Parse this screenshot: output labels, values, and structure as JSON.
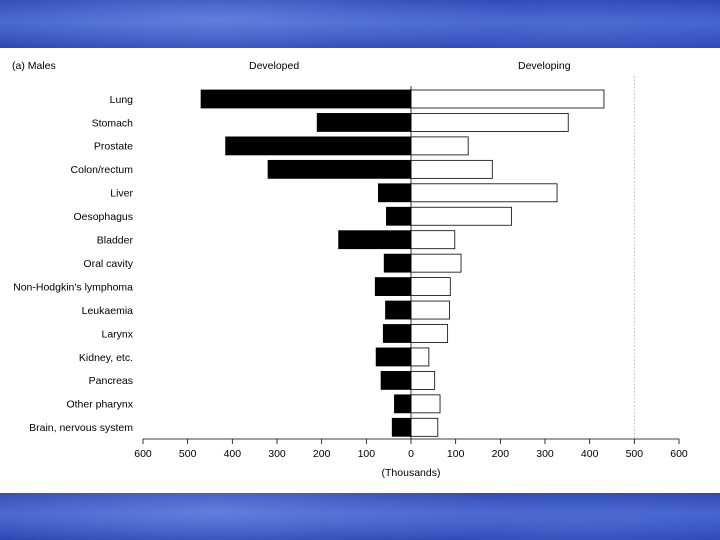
{
  "chart_data": {
    "type": "bar",
    "orientation": "horizontal",
    "panel_label": "(a) Males",
    "left_header": "Developed",
    "right_header": "Developing",
    "xlabel": "(Thousands)",
    "xlim": [
      -600,
      600
    ],
    "ticks": [
      -600,
      -500,
      -400,
      -300,
      -200,
      -100,
      0,
      100,
      200,
      300,
      400,
      500,
      600
    ],
    "tick_labels": [
      "600",
      "500",
      "400",
      "300",
      "200",
      "100",
      "0",
      "100",
      "200",
      "300",
      "400",
      "500",
      "600"
    ],
    "reference_line": 500,
    "categories": [
      "Lung",
      "Stomach",
      "Prostate",
      "Colon/rectum",
      "Liver",
      "Oesophagus",
      "Bladder",
      "Oral cavity",
      "Non-Hodgkin's lymphoma",
      "Leukaemia",
      "Larynx",
      "Kidney, etc.",
      "Pancreas",
      "Other pharynx",
      "Brain, nervous system"
    ],
    "series": [
      {
        "name": "Developed",
        "color": "#000000",
        "values": [
          470,
          210,
          415,
          320,
          73,
          55,
          162,
          60,
          80,
          57,
          62,
          78,
          67,
          37,
          42
        ]
      },
      {
        "name": "Developing",
        "color": "#ffffff",
        "values": [
          432,
          352,
          128,
          182,
          327,
          225,
          98,
          112,
          88,
          86,
          82,
          40,
          53,
          65,
          60
        ]
      }
    ]
  }
}
